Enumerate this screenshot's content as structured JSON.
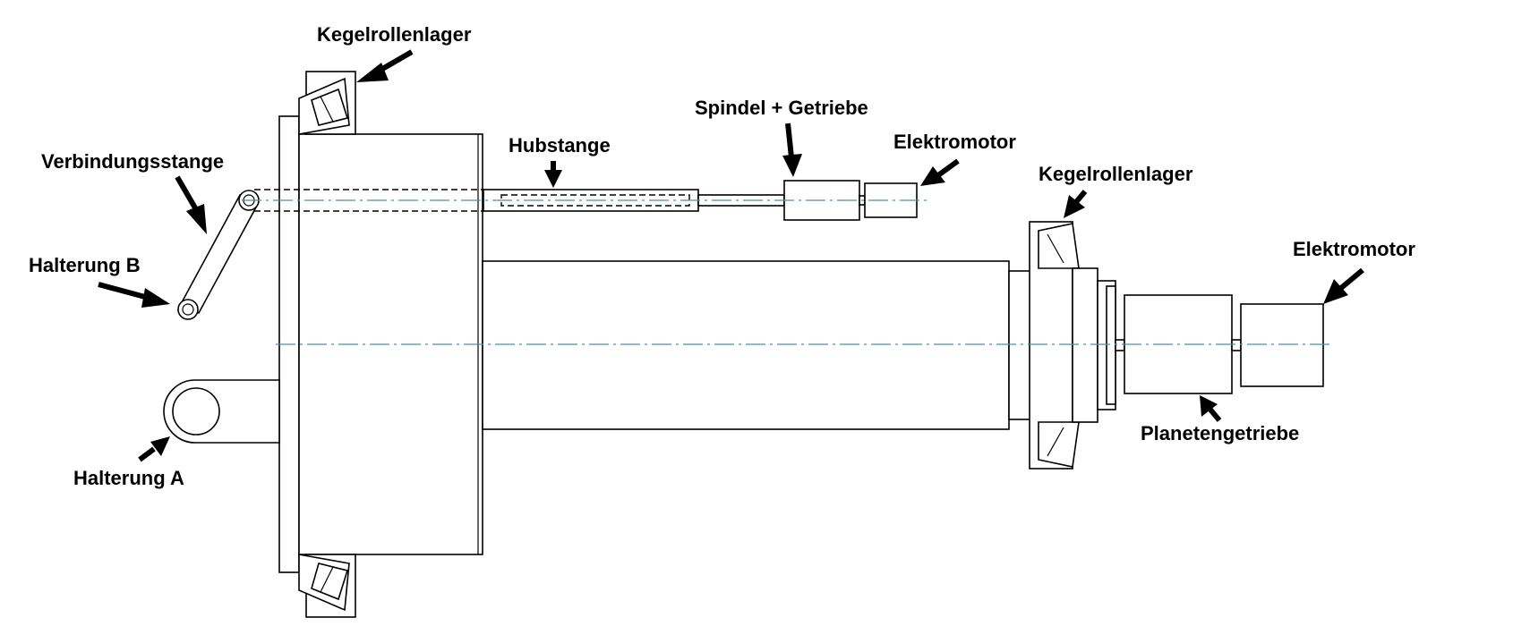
{
  "labels": {
    "kegelrollenlager_top": "Kegelrollenlager",
    "kegelrollenlager_right": "Kegelrollenlager",
    "spindel_getriebe": "Spindel + Getriebe",
    "hubstange": "Hubstange",
    "elektromotor_small": "Elektromotor",
    "elektromotor_large": "Elektromotor",
    "verbindungsstange": "Verbindungsstange",
    "halterung_b": "Halterung B",
    "halterung_a": "Halterung A",
    "planetengetriebe": "Planetengetriebe"
  },
  "colors": {
    "line": "#000000",
    "centerline": "#4e8fa8",
    "background": "#ffffff"
  }
}
